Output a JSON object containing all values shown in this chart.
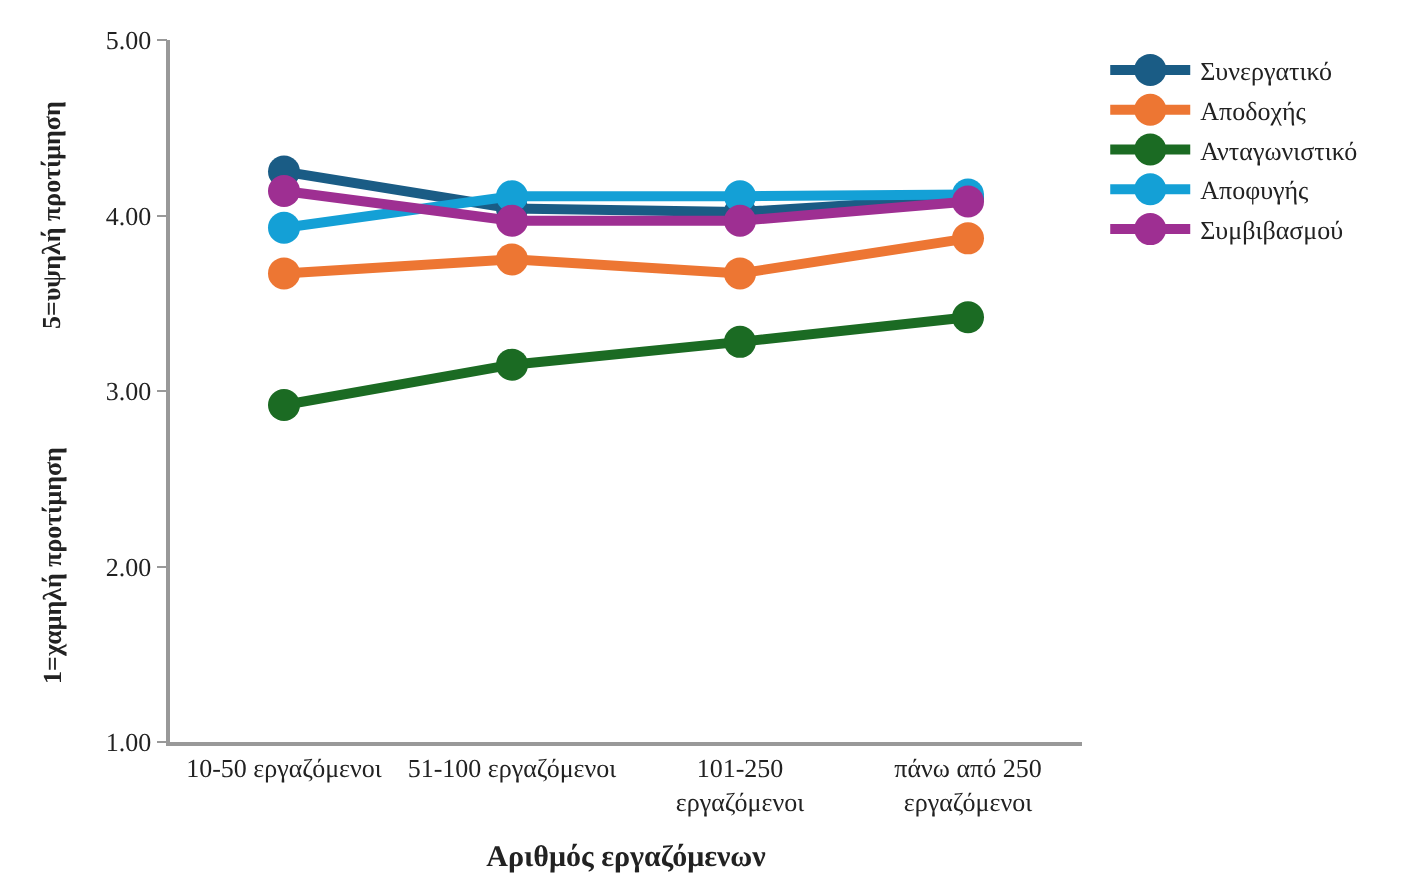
{
  "chart_data": {
    "type": "line",
    "xlabel": "Αριθμός εργαζόμενων",
    "annotations": [
      "1=χαμηλή προτίμηση",
      "5=υψηλή προτίμηση"
    ],
    "categories": [
      "10-50 εργαζόμενοι",
      "51-100 εργαζόμενοι",
      "101-250 εργαζόμενοι",
      "πάνω από 250 εργαζόμενοι"
    ],
    "series": [
      {
        "name": "Συνεργατικό",
        "color": "#1a5c85",
        "values": [
          4.25,
          4.04,
          4.02,
          4.1
        ]
      },
      {
        "name": "Αποδοχής",
        "color": "#ed7633",
        "values": [
          3.67,
          3.75,
          3.67,
          3.87
        ]
      },
      {
        "name": "Ανταγωνιστικό",
        "color": "#1b6b23",
        "values": [
          2.92,
          3.15,
          3.28,
          3.42
        ]
      },
      {
        "name": "Αποφυγής",
        "color": "#14a0d6",
        "values": [
          3.93,
          4.11,
          4.11,
          4.12
        ]
      },
      {
        "name": "Συμβιβασμού",
        "color": "#9e2f92",
        "values": [
          4.14,
          3.97,
          3.97,
          4.08
        ]
      }
    ],
    "ylim": [
      1,
      5
    ],
    "yticks": [
      {
        "value": 1,
        "label": "1.00"
      },
      {
        "value": 2,
        "label": "2.00"
      },
      {
        "value": 3,
        "label": "3.00"
      },
      {
        "value": 4,
        "label": "4.00"
      },
      {
        "value": 5,
        "label": "5.00"
      }
    ],
    "legend": "top right",
    "marker": "circle",
    "line_style": "solid"
  }
}
